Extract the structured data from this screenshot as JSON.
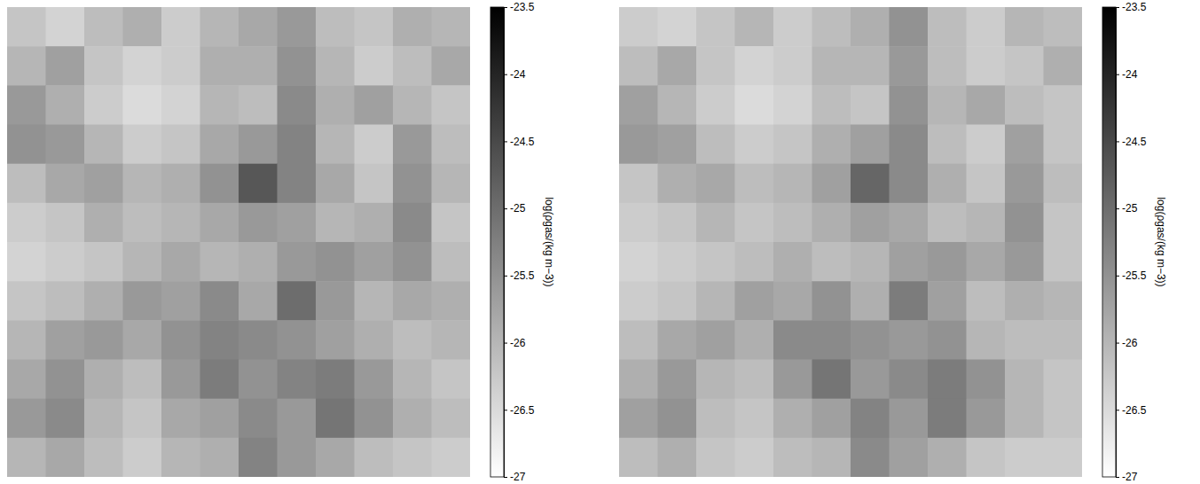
{
  "chart_data": [
    {
      "type": "heatmap",
      "colorbar_label": "log(ρgas/(kg m−3))",
      "colorbar_range": [
        -27,
        -23.5
      ],
      "colorbar_ticks": [
        -27,
        -26.5,
        -26,
        -25.5,
        -25,
        -24.5,
        -24,
        -23.5
      ],
      "values": [
        [
          -26.2,
          -26.4,
          -26.1,
          -25.9,
          -26.3,
          -26.0,
          -25.8,
          -25.6,
          -26.1,
          -26.2,
          -25.9,
          -26.0
        ],
        [
          -26.0,
          -25.7,
          -26.2,
          -26.4,
          -26.3,
          -25.9,
          -25.9,
          -25.5,
          -26.0,
          -26.3,
          -26.1,
          -25.8
        ],
        [
          -25.6,
          -25.9,
          -26.3,
          -26.5,
          -26.4,
          -26.0,
          -26.1,
          -25.4,
          -25.9,
          -25.7,
          -26.0,
          -26.2
        ],
        [
          -25.5,
          -25.6,
          -26.0,
          -26.3,
          -26.2,
          -25.8,
          -25.6,
          -25.3,
          -26.0,
          -26.3,
          -25.6,
          -26.1
        ],
        [
          -26.1,
          -25.8,
          -25.7,
          -26.0,
          -25.9,
          -25.5,
          -24.7,
          -25.3,
          -25.8,
          -26.2,
          -25.5,
          -26.0
        ],
        [
          -26.3,
          -26.2,
          -25.9,
          -26.1,
          -26.0,
          -25.8,
          -25.6,
          -25.7,
          -26.0,
          -25.9,
          -25.4,
          -26.2
        ],
        [
          -26.4,
          -26.3,
          -26.2,
          -26.0,
          -25.8,
          -26.0,
          -25.9,
          -25.6,
          -25.5,
          -25.7,
          -25.5,
          -26.1
        ],
        [
          -26.2,
          -26.1,
          -25.9,
          -25.6,
          -25.7,
          -25.4,
          -25.8,
          -25.0,
          -25.6,
          -26.0,
          -25.8,
          -25.9
        ],
        [
          -26.0,
          -25.7,
          -25.6,
          -25.8,
          -25.5,
          -25.3,
          -25.4,
          -25.5,
          -25.7,
          -25.9,
          -26.1,
          -26.0
        ],
        [
          -25.8,
          -25.5,
          -25.9,
          -26.1,
          -25.6,
          -25.2,
          -25.5,
          -25.3,
          -25.2,
          -25.6,
          -26.0,
          -26.2
        ],
        [
          -25.6,
          -25.4,
          -26.0,
          -26.2,
          -25.8,
          -25.7,
          -25.4,
          -25.6,
          -25.1,
          -25.5,
          -25.9,
          -26.1
        ],
        [
          -26.0,
          -25.8,
          -26.1,
          -26.3,
          -26.0,
          -25.9,
          -25.3,
          -25.6,
          -25.8,
          -26.1,
          -26.2,
          -26.3
        ]
      ]
    },
    {
      "type": "heatmap",
      "colorbar_label": "log(ρgas/(kg m−3))",
      "colorbar_range": [
        -27,
        -23.5
      ],
      "colorbar_ticks": [
        -27,
        -26.5,
        -26,
        -25.5,
        -25,
        -24.5,
        -24,
        -23.5
      ],
      "values": [
        [
          -26.3,
          -26.4,
          -26.2,
          -26.0,
          -26.3,
          -26.1,
          -25.9,
          -25.5,
          -26.1,
          -26.3,
          -26.0,
          -26.1
        ],
        [
          -26.1,
          -25.8,
          -26.2,
          -26.4,
          -26.3,
          -26.0,
          -26.0,
          -25.6,
          -26.1,
          -26.3,
          -26.2,
          -25.9
        ],
        [
          -25.7,
          -26.0,
          -26.3,
          -26.5,
          -26.4,
          -26.1,
          -26.2,
          -25.5,
          -26.0,
          -25.8,
          -26.1,
          -26.2
        ],
        [
          -25.6,
          -25.7,
          -26.1,
          -26.3,
          -26.2,
          -25.9,
          -25.7,
          -25.4,
          -26.1,
          -26.3,
          -25.7,
          -26.2
        ],
        [
          -26.2,
          -25.9,
          -25.8,
          -26.1,
          -26.0,
          -25.7,
          -24.9,
          -25.4,
          -25.9,
          -26.2,
          -25.6,
          -26.1
        ],
        [
          -26.3,
          -26.2,
          -26.0,
          -26.2,
          -26.1,
          -25.9,
          -25.7,
          -25.8,
          -26.1,
          -26.0,
          -25.5,
          -26.2
        ],
        [
          -26.4,
          -26.3,
          -26.2,
          -26.1,
          -25.9,
          -26.1,
          -26.0,
          -25.7,
          -25.6,
          -25.8,
          -25.6,
          -26.2
        ],
        [
          -26.3,
          -26.2,
          -26.0,
          -25.7,
          -25.8,
          -25.5,
          -25.9,
          -25.2,
          -25.7,
          -26.1,
          -25.9,
          -26.0
        ],
        [
          -26.1,
          -25.8,
          -25.7,
          -25.9,
          -25.4,
          -25.4,
          -25.5,
          -25.6,
          -25.5,
          -26.0,
          -26.1,
          -26.1
        ],
        [
          -25.9,
          -25.6,
          -26.0,
          -26.1,
          -25.6,
          -25.1,
          -25.6,
          -25.4,
          -25.2,
          -25.5,
          -26.0,
          -26.2
        ],
        [
          -25.7,
          -25.5,
          -26.1,
          -26.2,
          -25.9,
          -25.7,
          -25.3,
          -25.6,
          -25.2,
          -25.6,
          -26.0,
          -26.2
        ],
        [
          -26.1,
          -25.9,
          -26.2,
          -26.3,
          -26.1,
          -26.0,
          -25.4,
          -25.7,
          -25.9,
          -26.2,
          -26.3,
          -26.3
        ]
      ]
    }
  ]
}
